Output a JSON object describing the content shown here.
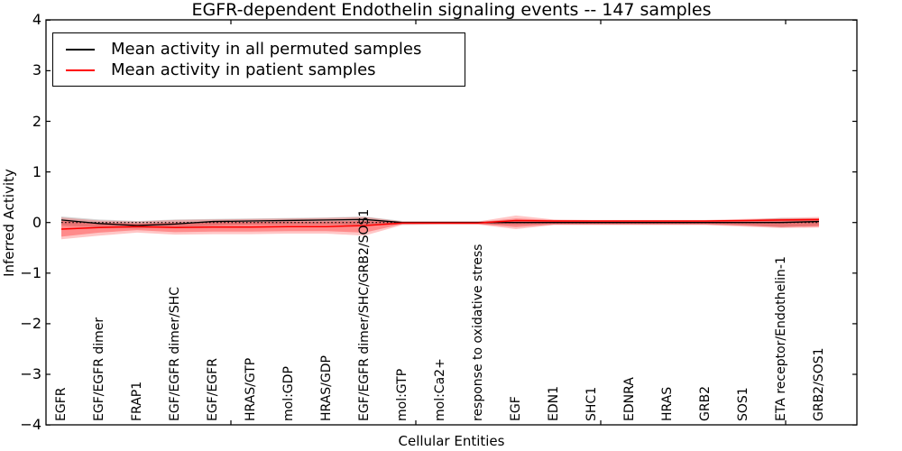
{
  "title": "EGFR-dependent Endothelin signaling events -- 147 samples",
  "axes": {
    "ylabel": "Inferred Activity",
    "xlabel": "Cellular Entities",
    "yticks": [
      "4",
      "3",
      "2",
      "1",
      "0",
      "−1",
      "−2",
      "−3",
      "−4"
    ],
    "ylim": [
      -4,
      4
    ]
  },
  "legend": {
    "entries": [
      {
        "label": "Mean activity in all permuted samples",
        "color": "#000000"
      },
      {
        "label": "Mean activity in patient samples",
        "color": "#ff0000"
      }
    ]
  },
  "chart_data": {
    "type": "line",
    "title": "EGFR-dependent Endothelin signaling events -- 147 samples",
    "xlabel": "Cellular Entities",
    "ylabel": "Inferred Activity",
    "ylim": [
      -4,
      4
    ],
    "xlim": [
      0,
      21.9
    ],
    "xtick_positions": [
      5,
      10,
      15,
      20
    ],
    "grid": false,
    "legend_position": "upper left",
    "categories": [
      "EGFR",
      "EGF/EGFR dimer",
      "FRAP1",
      "EGF/EGFR dimer/SHC",
      "EGF/EGFR",
      "HRAS/GTP",
      "mol:GDP",
      "HRAS/GDP",
      "EGF/EGFR dimer/SHC/GRB2/SOS1",
      "mol:GTP",
      "mol:Ca2+",
      "response to oxidative stress",
      "EGF",
      "EDN1",
      "SHC1",
      "EDNRA",
      "HRAS",
      "GRB2",
      "SOS1",
      "ETA receptor/Endothelin-1",
      "GRB2/SOS1"
    ],
    "zero_line": {
      "y": 0,
      "style": "dotted",
      "color": "#000000"
    },
    "series": [
      {
        "name": "Mean activity in all permuted samples",
        "color": "#000000",
        "values": [
          0.05,
          -0.02,
          -0.06,
          -0.03,
          0.02,
          0.03,
          0.04,
          0.05,
          0.06,
          0.0,
          0.0,
          0.0,
          0.0,
          0.0,
          0.0,
          0.0,
          0.0,
          0.0,
          0.0,
          0.0,
          0.02
        ]
      },
      {
        "name": "Mean activity in patient samples",
        "color": "#ff0000",
        "values": [
          -0.13,
          -0.1,
          -0.08,
          -0.1,
          -0.09,
          -0.09,
          -0.08,
          -0.08,
          -0.06,
          -0.01,
          -0.01,
          -0.01,
          0.04,
          0.03,
          0.03,
          0.03,
          0.03,
          0.03,
          0.04,
          0.05,
          0.06
        ]
      }
    ],
    "bands": [
      {
        "name": "permuted-samples-range",
        "color": "#999999",
        "opacity": 0.4,
        "upper": [
          0.12,
          0.06,
          0.03,
          0.06,
          0.07,
          0.08,
          0.09,
          0.1,
          0.12,
          0.03,
          0.03,
          0.03,
          0.04,
          0.03,
          0.03,
          0.03,
          0.03,
          0.03,
          0.05,
          0.09,
          0.08
        ],
        "lower": [
          -0.06,
          -0.09,
          -0.12,
          -0.09,
          -0.06,
          -0.04,
          -0.04,
          -0.04,
          -0.05,
          -0.04,
          -0.03,
          -0.03,
          -0.05,
          -0.03,
          -0.03,
          -0.03,
          -0.03,
          -0.03,
          -0.05,
          -0.09,
          -0.06
        ]
      },
      {
        "name": "patient-samples-range-outer",
        "color": "#ff0000",
        "opacity": 0.22,
        "upper": [
          0.1,
          0.04,
          0.02,
          0.05,
          0.06,
          0.07,
          0.08,
          0.09,
          0.11,
          0.02,
          0.02,
          0.02,
          0.14,
          0.06,
          0.05,
          0.05,
          0.05,
          0.05,
          0.07,
          0.09,
          0.11
        ],
        "lower": [
          -0.33,
          -0.26,
          -0.2,
          -0.24,
          -0.23,
          -0.23,
          -0.22,
          -0.22,
          -0.26,
          -0.05,
          -0.04,
          -0.04,
          -0.13,
          -0.05,
          -0.05,
          -0.05,
          -0.05,
          -0.05,
          -0.08,
          -0.11,
          -0.1
        ]
      },
      {
        "name": "patient-samples-range-inner",
        "color": "#ff0000",
        "opacity": 0.3,
        "upper": [
          0.03,
          0.0,
          -0.02,
          0.0,
          0.01,
          0.01,
          0.02,
          0.02,
          0.03,
          0.01,
          0.01,
          0.01,
          0.08,
          0.05,
          0.04,
          0.04,
          0.04,
          0.04,
          0.05,
          0.07,
          0.08
        ],
        "lower": [
          -0.28,
          -0.2,
          -0.15,
          -0.19,
          -0.18,
          -0.18,
          -0.17,
          -0.17,
          -0.2,
          -0.03,
          -0.03,
          -0.03,
          -0.09,
          -0.04,
          -0.04,
          -0.04,
          -0.04,
          -0.04,
          -0.06,
          -0.09,
          -0.08
        ]
      }
    ]
  }
}
